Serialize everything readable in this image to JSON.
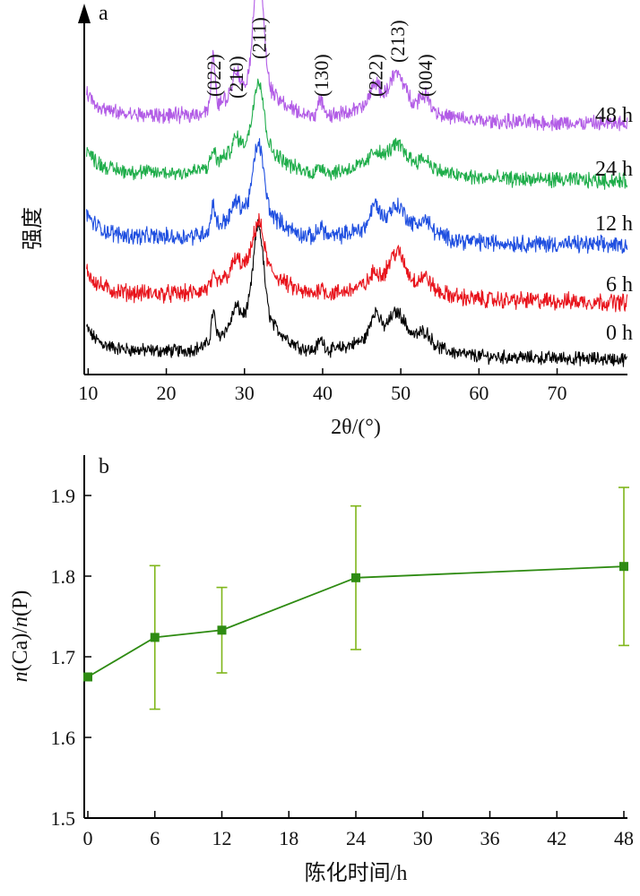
{
  "chart_data": [
    {
      "panel": "a",
      "type": "line",
      "xlabel": "2θ/(°)",
      "ylabel": "强度",
      "xlim": [
        9.5,
        79
      ],
      "x_ticks": [
        10,
        20,
        30,
        40,
        50,
        60,
        70
      ],
      "ylim": [
        0,
        100
      ],
      "grid": false,
      "legend": "none",
      "peaks": [
        {
          "label": "(022)",
          "x": 26.0
        },
        {
          "label": "(210)",
          "x": 28.9
        },
        {
          "label": "(211)",
          "x": 31.8
        },
        {
          "label": "(130)",
          "x": 39.8
        },
        {
          "label": "(222)",
          "x": 46.7
        },
        {
          "label": "(213)",
          "x": 49.5
        },
        {
          "label": "(004)",
          "x": 53.1
        }
      ],
      "series": [
        {
          "name": "0 h",
          "color": "#000000",
          "baseline": 7,
          "peak_heights": [
            8,
            4,
            25,
            3,
            7,
            6,
            3
          ],
          "broad": 11,
          "noise": 1.4
        },
        {
          "name": "6 h",
          "color": "#e8141c",
          "baseline": 23,
          "peak_heights": [
            2,
            3,
            12,
            2,
            3,
            8,
            3
          ],
          "broad": 9,
          "noise": 1.8
        },
        {
          "name": "12 h",
          "color": "#1f4fe0",
          "baseline": 39,
          "peak_heights": [
            7,
            3,
            18,
            3,
            6,
            5,
            3
          ],
          "broad": 9,
          "noise": 1.8
        },
        {
          "name": "24 h",
          "color": "#1fad4a",
          "baseline": 57,
          "peak_heights": [
            4,
            3,
            18,
            2,
            3,
            4,
            2
          ],
          "broad": 9,
          "noise": 1.6
        },
        {
          "name": "48 h",
          "color": "#b25ce6",
          "baseline": 73,
          "peak_heights": [
            14,
            6,
            32,
            4,
            6,
            8,
            4
          ],
          "broad": 9,
          "noise": 1.6
        }
      ]
    },
    {
      "panel": "b",
      "type": "line",
      "xlabel": "陈化时间/h",
      "ylabel_parts": [
        "n",
        "(Ca)/",
        "n",
        "(P)"
      ],
      "xlim": [
        0,
        48
      ],
      "ylim": [
        1.5,
        1.95
      ],
      "x_ticks": [
        0,
        6,
        12,
        18,
        24,
        30,
        36,
        42,
        48
      ],
      "y_ticks": [
        1.5,
        1.6,
        1.7,
        1.8,
        1.9
      ],
      "grid": false,
      "legend": "none",
      "series": [
        {
          "color": "#2e8b12",
          "errorbar_color": "#7fb61a",
          "x": [
            0,
            6,
            12,
            24,
            48
          ],
          "y": [
            1.675,
            1.724,
            1.733,
            1.798,
            1.812
          ],
          "err": [
            0.0,
            0.089,
            0.053,
            0.089,
            0.098
          ]
        }
      ]
    }
  ]
}
